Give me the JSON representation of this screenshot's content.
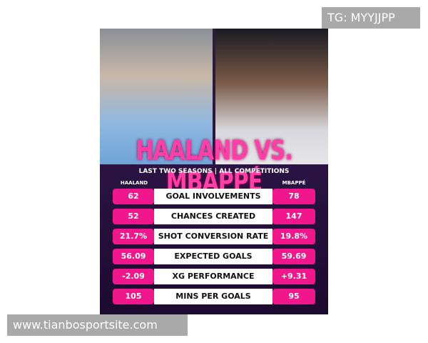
{
  "watermark_top": "TG: MYYJJPP",
  "watermark_bottom": "www.tianbosportsite.com",
  "title": "HAALAND VS. MBAPPÉ",
  "subtitle": "LAST TWO SEASONS | ALL COMPETITIONS",
  "table": {
    "header": [
      "HAALAND",
      "MBAPPÉ"
    ],
    "rows": [
      [
        "62",
        "GOAL INVOLVEMENTS",
        "78"
      ],
      [
        "52",
        "CHANCES CREATED",
        "147"
      ],
      [
        "21.7%",
        "SHOT CONVERSION RATE",
        "19.8%"
      ],
      [
        "56.09",
        "EXPECTED GOALS",
        "59.69"
      ],
      [
        "-2.09",
        "XG PERFORMANCE",
        "+9.31"
      ],
      [
        "105",
        "MINS PER GOALS",
        "95"
      ]
    ]
  }
}
